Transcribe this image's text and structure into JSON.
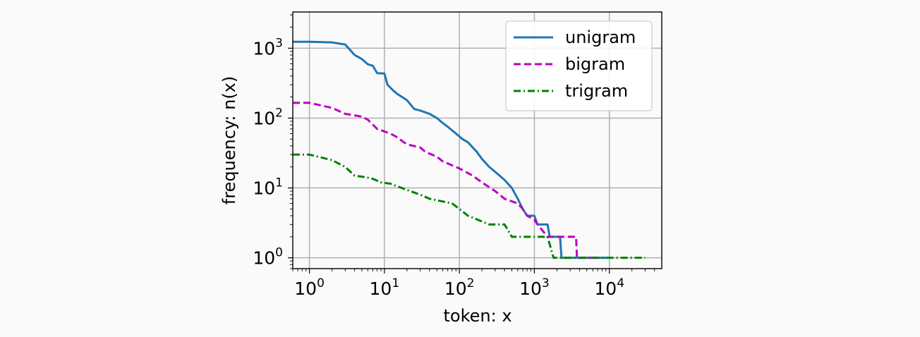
{
  "chart_data": {
    "type": "line",
    "title": "",
    "xlabel": "token: x",
    "ylabel": "frequency: n(x)",
    "x_scale": "log",
    "y_scale": "log",
    "xlim": [
      0.6,
      50000
    ],
    "ylim": [
      0.7,
      3300
    ],
    "x_ticks": [
      {
        "value": 1,
        "base": "10",
        "exp": "0"
      },
      {
        "value": 10,
        "base": "10",
        "exp": "1"
      },
      {
        "value": 100,
        "base": "10",
        "exp": "2"
      },
      {
        "value": 1000,
        "base": "10",
        "exp": "3"
      },
      {
        "value": 10000,
        "base": "10",
        "exp": "4"
      }
    ],
    "y_ticks": [
      {
        "value": 1,
        "base": "10",
        "exp": "0"
      },
      {
        "value": 10,
        "base": "10",
        "exp": "1"
      },
      {
        "value": 100,
        "base": "10",
        "exp": "2"
      },
      {
        "value": 1000,
        "base": "10",
        "exp": "3"
      }
    ],
    "grid": true,
    "legend_position": "top-right",
    "series": [
      {
        "name": "unigram",
        "color": "#1f77b4",
        "dash": "solid",
        "points": [
          [
            0.6,
            1235
          ],
          [
            1,
            1235
          ],
          [
            2,
            1210
          ],
          [
            3,
            1130
          ],
          [
            4,
            800
          ],
          [
            5,
            700
          ],
          [
            6,
            590
          ],
          [
            7,
            560
          ],
          [
            8,
            440
          ],
          [
            10,
            435
          ],
          [
            11,
            300
          ],
          [
            13,
            250
          ],
          [
            15,
            220
          ],
          [
            20,
            180
          ],
          [
            25,
            135
          ],
          [
            30,
            128
          ],
          [
            40,
            115
          ],
          [
            50,
            100
          ],
          [
            60,
            85
          ],
          [
            70,
            75
          ],
          [
            90,
            60
          ],
          [
            110,
            50
          ],
          [
            130,
            45
          ],
          [
            170,
            33
          ],
          [
            200,
            26
          ],
          [
            250,
            20
          ],
          [
            300,
            17
          ],
          [
            400,
            13
          ],
          [
            500,
            10
          ],
          [
            600,
            7
          ],
          [
            700,
            5
          ],
          [
            800,
            4
          ],
          [
            1000,
            4
          ],
          [
            1100,
            3
          ],
          [
            1500,
            3
          ],
          [
            1600,
            2
          ],
          [
            2200,
            2
          ],
          [
            2300,
            1
          ],
          [
            10000,
            1
          ]
        ]
      },
      {
        "name": "bigram",
        "color": "#bf00bf",
        "dash": "dashed",
        "points": [
          [
            0.6,
            165
          ],
          [
            1,
            165
          ],
          [
            2,
            140
          ],
          [
            3,
            115
          ],
          [
            5,
            105
          ],
          [
            6,
            95
          ],
          [
            8,
            70
          ],
          [
            12,
            60
          ],
          [
            14,
            55
          ],
          [
            20,
            42
          ],
          [
            30,
            38
          ],
          [
            35,
            33
          ],
          [
            50,
            28
          ],
          [
            60,
            24
          ],
          [
            100,
            19
          ],
          [
            150,
            15
          ],
          [
            200,
            12
          ],
          [
            300,
            9
          ],
          [
            400,
            7
          ],
          [
            600,
            6
          ],
          [
            700,
            5
          ],
          [
            800,
            4
          ],
          [
            1000,
            3.5
          ],
          [
            1100,
            3
          ],
          [
            1500,
            2
          ],
          [
            3600,
            2
          ],
          [
            3700,
            1
          ],
          [
            7000,
            1
          ]
        ]
      },
      {
        "name": "trigram",
        "color": "#008000",
        "dash": "dashdot",
        "points": [
          [
            0.6,
            30
          ],
          [
            1,
            30
          ],
          [
            2,
            25
          ],
          [
            3,
            20
          ],
          [
            4,
            15
          ],
          [
            5,
            14.5
          ],
          [
            6,
            14
          ],
          [
            7,
            13.5
          ],
          [
            9,
            12
          ],
          [
            12,
            11.5
          ],
          [
            15,
            10.5
          ],
          [
            30,
            8
          ],
          [
            40,
            7
          ],
          [
            80,
            6
          ],
          [
            100,
            5
          ],
          [
            130,
            4
          ],
          [
            250,
            3
          ],
          [
            400,
            3
          ],
          [
            500,
            2
          ],
          [
            1500,
            2
          ],
          [
            1800,
            1
          ],
          [
            30000,
            1
          ]
        ]
      }
    ]
  }
}
